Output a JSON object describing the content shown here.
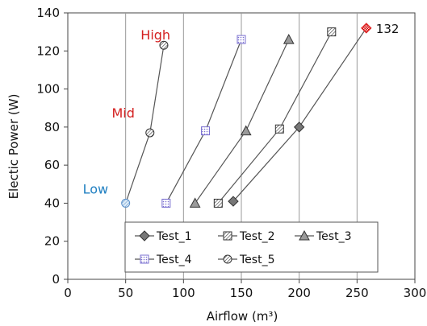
{
  "chart_data": {
    "type": "line",
    "xlabel": "Airflow (m³)",
    "ylabel": "Electic Power (W)",
    "xlim": [
      0,
      300
    ],
    "ylim": [
      0,
      140
    ],
    "xticks": [
      "0",
      "50",
      "100",
      "150",
      "200",
      "250",
      "300"
    ],
    "yticks": [
      "0",
      "20",
      "40",
      "60",
      "80",
      "100",
      "120",
      "140"
    ],
    "grid": "vertical",
    "legend_position": "bottom-center",
    "series": [
      {
        "name": "Test_1",
        "marker": "diamond",
        "x": [
          143,
          200,
          258
        ],
        "y": [
          41,
          80,
          132
        ]
      },
      {
        "name": "Test_2",
        "marker": "square-hatched",
        "x": [
          130,
          183,
          228
        ],
        "y": [
          40,
          79,
          130
        ]
      },
      {
        "name": "Test_3",
        "marker": "triangle",
        "x": [
          110,
          154,
          191
        ],
        "y": [
          40,
          78,
          126
        ]
      },
      {
        "name": "Test_4",
        "marker": "square-dotted",
        "x": [
          85,
          119,
          150
        ],
        "y": [
          40,
          78,
          126
        ]
      },
      {
        "name": "Test_5",
        "marker": "circle-hatched",
        "x": [
          50,
          71,
          83
        ],
        "y": [
          40,
          77,
          123
        ]
      }
    ],
    "highlight_point": {
      "x": 258,
      "y": 132,
      "label": "132",
      "color": "#e02020"
    },
    "annotations": [
      {
        "text": "High",
        "x": 63,
        "y": 126,
        "color": "#d42020"
      },
      {
        "text": "Mid",
        "x": 38,
        "y": 85,
        "color": "#d42020"
      },
      {
        "text": "Low",
        "x": 13,
        "y": 45,
        "color": "#1f7fc1"
      }
    ]
  }
}
